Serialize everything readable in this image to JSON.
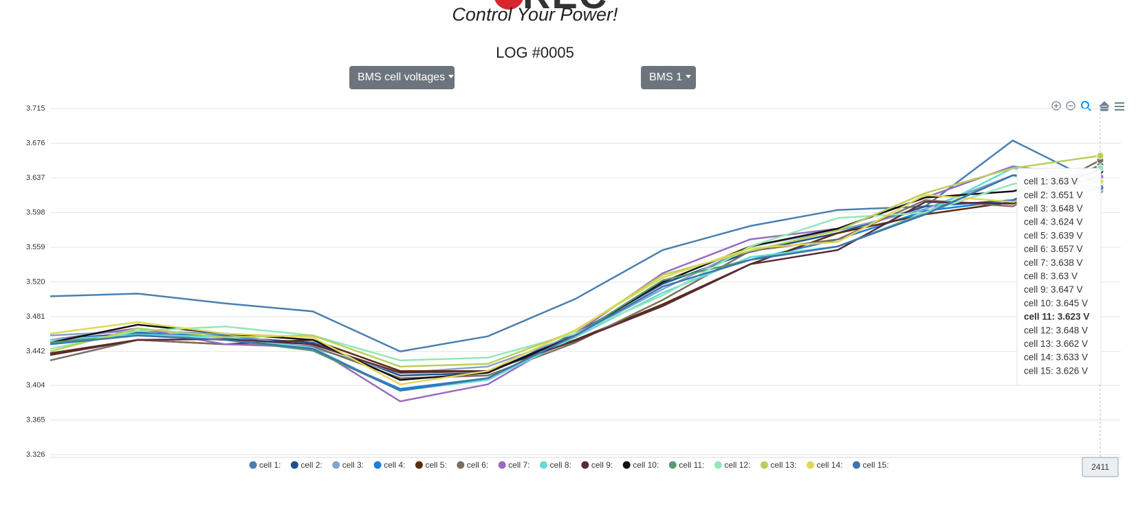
{
  "logo": {
    "mark": "REC",
    "slogan": "Control Your Power!"
  },
  "title": "LOG #0005",
  "buttons": [
    "BMS cell voltages",
    "BMS 1"
  ],
  "chart_data": {
    "type": "line",
    "categories": [
      null,
      null,
      null,
      null,
      null,
      null,
      null,
      null,
      null,
      null,
      null,
      null,
      "2411"
    ],
    "ylim": [
      3.326,
      3.715
    ],
    "yticks": [
      3.326,
      3.365,
      3.404,
      3.442,
      3.481,
      {
        "value": 3.52,
        "label": "3.520"
      },
      3.559,
      3.598,
      3.637,
      3.676,
      3.715
    ],
    "grid": true,
    "legend": "bottom",
    "series": [
      {
        "name": "cell 1:",
        "color": "#4a7fb0",
        "values": [
          3.504,
          3.507,
          3.496,
          3.487,
          3.442,
          3.459,
          3.501,
          3.556,
          3.583,
          3.601,
          3.605,
          3.679,
          3.63
        ]
      },
      {
        "name": "cell 2:",
        "color": "#1f4e8c",
        "values": [
          3.455,
          3.463,
          3.458,
          3.452,
          3.415,
          3.418,
          3.462,
          3.518,
          3.554,
          3.575,
          3.605,
          3.612,
          3.651
        ]
      },
      {
        "name": "cell 3:",
        "color": "#7fa3cc",
        "values": [
          3.46,
          3.465,
          3.462,
          3.446,
          3.418,
          3.425,
          3.46,
          3.512,
          3.56,
          3.578,
          3.602,
          3.64,
          3.648
        ]
      },
      {
        "name": "cell 4:",
        "color": "#1a7fe0",
        "values": [
          3.452,
          3.462,
          3.46,
          3.443,
          3.4,
          3.412,
          3.46,
          3.515,
          3.545,
          3.568,
          3.6,
          3.612,
          3.624
        ]
      },
      {
        "name": "cell 5:",
        "color": "#5a2d0c",
        "values": [
          3.44,
          3.455,
          3.45,
          3.455,
          3.42,
          3.42,
          3.455,
          3.495,
          3.54,
          3.575,
          3.596,
          3.61,
          3.639
        ]
      },
      {
        "name": "cell 6:",
        "color": "#7a7060",
        "values": [
          3.432,
          3.455,
          3.45,
          3.448,
          3.412,
          3.415,
          3.452,
          3.5,
          3.555,
          3.568,
          3.612,
          3.605,
          3.657
        ]
      },
      {
        "name": "cell 7:",
        "color": "#9a6bc0",
        "values": [
          3.455,
          3.468,
          3.45,
          3.447,
          3.386,
          3.405,
          3.462,
          3.53,
          3.568,
          3.58,
          3.615,
          3.65,
          3.638
        ]
      },
      {
        "name": "cell 8:",
        "color": "#66d9d4",
        "values": [
          3.455,
          3.461,
          3.458,
          3.446,
          3.398,
          3.41,
          3.458,
          3.508,
          3.548,
          3.56,
          3.598,
          3.648,
          3.63
        ]
      },
      {
        "name": "cell 9:",
        "color": "#5a2a3a",
        "values": [
          3.438,
          3.455,
          3.456,
          3.45,
          3.418,
          3.42,
          3.454,
          3.493,
          3.54,
          3.556,
          3.61,
          3.608,
          3.647
        ]
      },
      {
        "name": "cell 10:",
        "color": "#111111",
        "values": [
          3.452,
          3.472,
          3.462,
          3.455,
          3.41,
          3.418,
          3.46,
          3.52,
          3.56,
          3.58,
          3.615,
          3.622,
          3.645
        ]
      },
      {
        "name": "cell 11:",
        "color": "#5a9a70",
        "values": [
          3.452,
          3.46,
          3.455,
          3.443,
          3.398,
          3.412,
          3.46,
          3.522,
          3.545,
          3.56,
          3.597,
          3.64,
          3.623
        ]
      },
      {
        "name": "cell 12:",
        "color": "#90e8b8",
        "values": [
          3.445,
          3.465,
          3.47,
          3.46,
          3.432,
          3.435,
          3.462,
          3.505,
          3.56,
          3.592,
          3.598,
          3.63,
          3.648
        ]
      },
      {
        "name": "cell 13:",
        "color": "#b9cf5a",
        "values": [
          3.442,
          3.468,
          3.458,
          3.46,
          3.425,
          3.428,
          3.465,
          3.528,
          3.555,
          3.578,
          3.62,
          3.648,
          3.662
        ]
      },
      {
        "name": "cell 14:",
        "color": "#e0d65a",
        "values": [
          3.462,
          3.475,
          3.462,
          3.458,
          3.405,
          3.42,
          3.466,
          3.525,
          3.558,
          3.565,
          3.618,
          3.61,
          3.633
        ]
      },
      {
        "name": "cell 15:",
        "color": "#3d74b0",
        "values": [
          3.45,
          3.46,
          3.455,
          3.445,
          3.398,
          3.412,
          3.46,
          3.515,
          3.545,
          3.56,
          3.596,
          3.64,
          3.626
        ]
      }
    ],
    "tooltip": {
      "items": [
        "cell 1: 3.63 V",
        "cell 2: 3.651 V",
        "cell 3: 3.648 V",
        "cell 4: 3.624 V",
        "cell 5: 3.639 V",
        "cell 6: 3.657 V",
        "cell 7: 3.638 V",
        "cell 8: 3.63 V",
        "cell 9: 3.647 V",
        "cell 10: 3.645 V",
        "cell 11: 3.623 V",
        "cell 12: 3.648 V",
        "cell 13: 3.662 V",
        "cell 14: 3.633 V",
        "cell 15: 3.626 V"
      ]
    }
  }
}
